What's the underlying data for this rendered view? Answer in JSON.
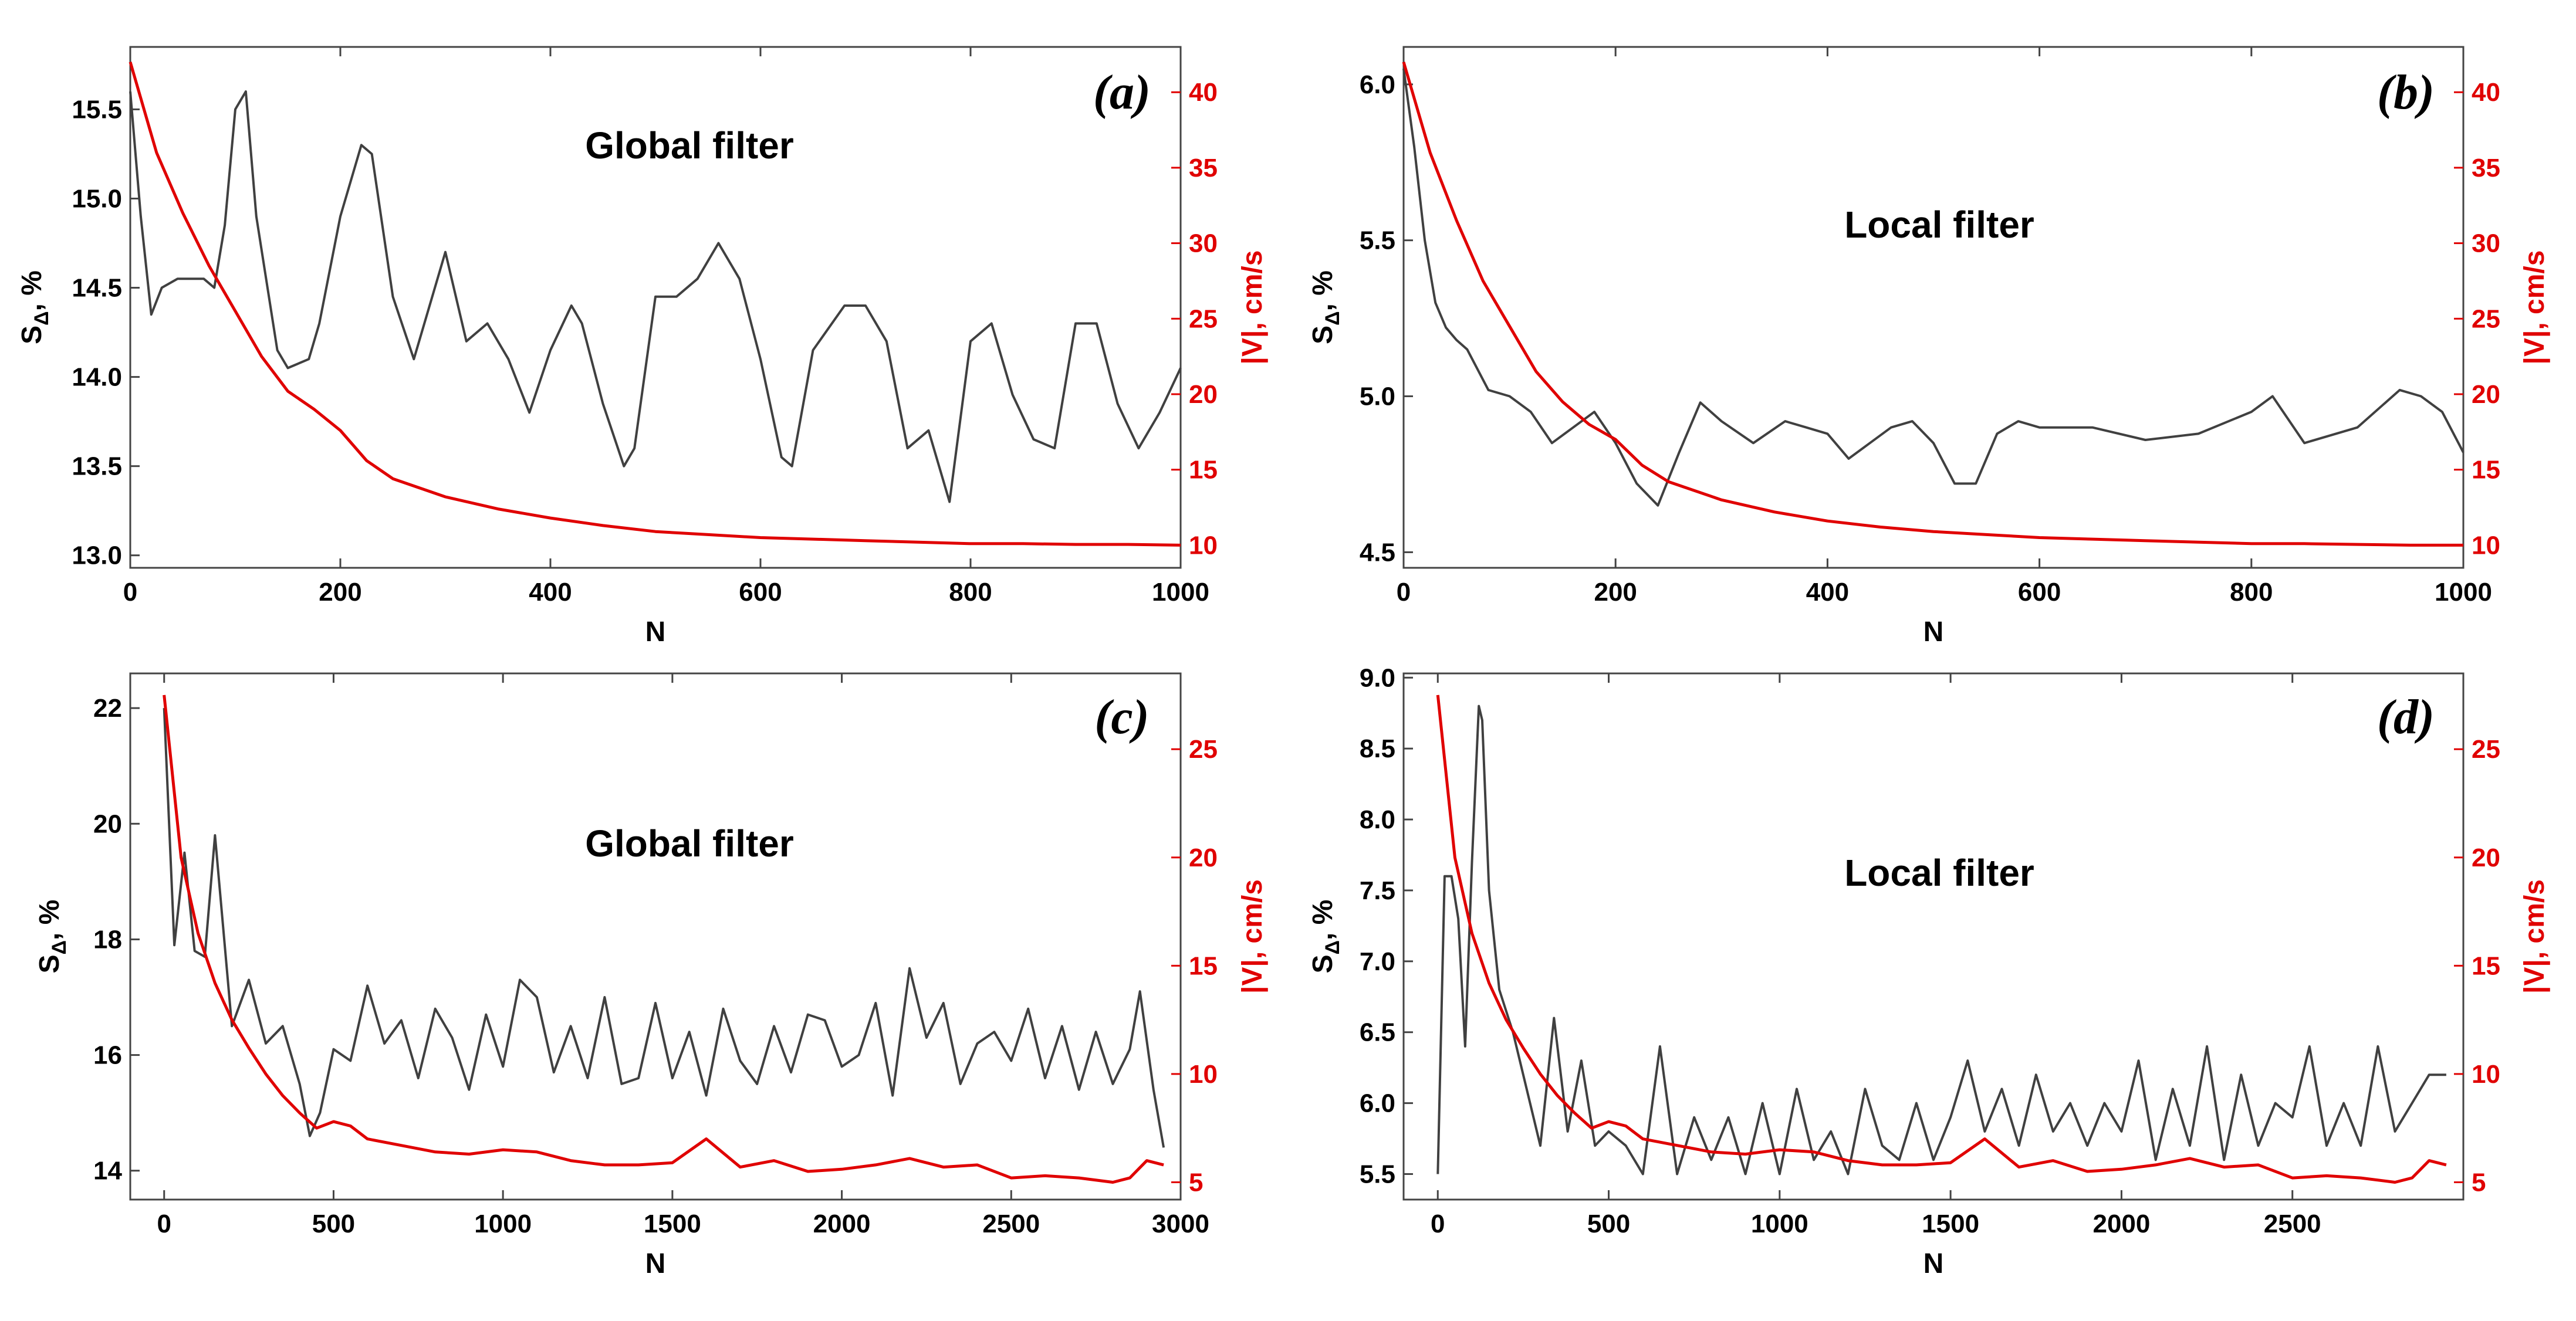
{
  "colors": {
    "s_line": "#404040",
    "v_line": "#e00000",
    "right_axis": "#e00000"
  },
  "chart_data": [
    {
      "type": "line",
      "panel": "(a)",
      "title": "Global filter",
      "xlabel": "N",
      "ylabel": "S_Δ, %",
      "ylabel_sub": "Δ",
      "ylabel_right": "|V|, cm/s",
      "xlim": [
        0,
        1000
      ],
      "ylim": [
        12.93,
        15.85
      ],
      "ylim_right": [
        8.5,
        43
      ],
      "xticks": [
        0,
        200,
        400,
        600,
        800,
        1000
      ],
      "xtick_labels": [
        "0",
        "200",
        "400",
        "600",
        "800",
        "1000"
      ],
      "yticks": [
        13.0,
        13.5,
        14.0,
        14.5,
        15.0,
        15.5
      ],
      "ytick_labels": [
        "13.0",
        "13.5",
        "14.0",
        "14.5",
        "15.0",
        "15.5"
      ],
      "yticks_right": [
        10,
        15,
        20,
        25,
        30,
        35,
        40
      ],
      "ytick_labels_right": [
        "10",
        "15",
        "20",
        "25",
        "30",
        "35",
        "40"
      ],
      "series": [
        {
          "name": "S_Δ",
          "axis": "left",
          "x": [
            0,
            10,
            20,
            30,
            45,
            60,
            70,
            80,
            90,
            100,
            110,
            120,
            140,
            150,
            170,
            180,
            200,
            220,
            230,
            250,
            270,
            300,
            320,
            340,
            360,
            380,
            400,
            420,
            430,
            450,
            470,
            480,
            500,
            520,
            540,
            560,
            580,
            600,
            620,
            630,
            650,
            680,
            700,
            720,
            740,
            760,
            780,
            800,
            820,
            840,
            860,
            880,
            900,
            920,
            940,
            960,
            980,
            1000
          ],
          "values": [
            15.6,
            14.9,
            14.35,
            14.5,
            14.55,
            14.55,
            14.55,
            14.5,
            14.85,
            15.5,
            15.6,
            14.9,
            14.15,
            14.05,
            14.1,
            14.3,
            14.9,
            15.3,
            15.25,
            14.45,
            14.1,
            14.7,
            14.2,
            14.3,
            14.1,
            13.8,
            14.15,
            14.4,
            14.3,
            13.85,
            13.5,
            13.6,
            14.45,
            14.45,
            14.55,
            14.75,
            14.55,
            14.1,
            13.55,
            13.5,
            14.15,
            14.4,
            14.4,
            14.2,
            13.6,
            13.7,
            13.3,
            14.2,
            14.3,
            13.9,
            13.65,
            13.6,
            14.3,
            14.3,
            13.85,
            13.6,
            13.8,
            14.05
          ]
        },
        {
          "name": "|V|",
          "axis": "right",
          "x": [
            0,
            25,
            50,
            75,
            100,
            125,
            150,
            175,
            200,
            225,
            250,
            300,
            350,
            400,
            450,
            500,
            550,
            600,
            650,
            700,
            750,
            800,
            850,
            900,
            950,
            1000
          ],
          "values": [
            42,
            36,
            32,
            28.5,
            25.5,
            22.5,
            20.2,
            19,
            17.6,
            15.6,
            14.4,
            13.2,
            12.4,
            11.8,
            11.3,
            10.9,
            10.7,
            10.5,
            10.4,
            10.3,
            10.2,
            10.1,
            10.1,
            10.05,
            10.05,
            10
          ]
        }
      ]
    },
    {
      "type": "line",
      "panel": "(b)",
      "title": "Local filter",
      "xlabel": "N",
      "ylabel": "S_Δ, %",
      "ylabel_sub": "Δ",
      "ylabel_right": "|V|, cm/s",
      "xlim": [
        0,
        1000
      ],
      "ylim": [
        4.45,
        6.12
      ],
      "ylim_right": [
        8.5,
        43
      ],
      "xticks": [
        0,
        200,
        400,
        600,
        800,
        1000
      ],
      "xtick_labels": [
        "0",
        "200",
        "400",
        "600",
        "800",
        "1000"
      ],
      "yticks": [
        4.5,
        5.0,
        5.5,
        6.0
      ],
      "ytick_labels": [
        "4.5",
        "5.0",
        "5.5",
        "6.0"
      ],
      "yticks_right": [
        10,
        15,
        20,
        25,
        30,
        35,
        40
      ],
      "ytick_labels_right": [
        "10",
        "15",
        "20",
        "25",
        "30",
        "35",
        "40"
      ],
      "series": [
        {
          "name": "S_Δ",
          "axis": "left",
          "x": [
            0,
            10,
            20,
            30,
            40,
            50,
            60,
            80,
            100,
            120,
            140,
            160,
            180,
            200,
            220,
            240,
            260,
            280,
            300,
            330,
            360,
            380,
            400,
            420,
            440,
            460,
            480,
            500,
            520,
            540,
            560,
            580,
            600,
            650,
            700,
            750,
            800,
            820,
            850,
            900,
            940,
            960,
            980,
            1000
          ],
          "values": [
            6.05,
            5.8,
            5.5,
            5.3,
            5.22,
            5.18,
            5.15,
            5.02,
            5.0,
            4.95,
            4.85,
            4.9,
            4.95,
            4.85,
            4.72,
            4.65,
            4.82,
            4.98,
            4.92,
            4.85,
            4.92,
            4.9,
            4.88,
            4.8,
            4.85,
            4.9,
            4.92,
            4.85,
            4.72,
            4.72,
            4.88,
            4.92,
            4.9,
            4.9,
            4.86,
            4.88,
            4.95,
            5.0,
            4.85,
            4.9,
            5.02,
            5.0,
            4.95,
            4.82
          ]
        },
        {
          "name": "|V|",
          "axis": "right",
          "x": [
            0,
            25,
            50,
            75,
            100,
            125,
            150,
            175,
            200,
            225,
            250,
            300,
            350,
            400,
            450,
            500,
            550,
            600,
            650,
            700,
            750,
            800,
            850,
            900,
            950,
            1000
          ],
          "values": [
            42,
            36,
            31.5,
            27.5,
            24.5,
            21.5,
            19.5,
            18,
            17,
            15.3,
            14.2,
            13,
            12.2,
            11.6,
            11.2,
            10.9,
            10.7,
            10.5,
            10.4,
            10.3,
            10.2,
            10.1,
            10.1,
            10.05,
            10,
            10
          ]
        }
      ]
    },
    {
      "type": "line",
      "panel": "(c)",
      "title": "Global filter",
      "xlabel": "N",
      "ylabel": "S_Δ, %",
      "ylabel_sub": "Δ",
      "ylabel_right": "|V|, cm/s",
      "xlim": [
        -100,
        3000
      ],
      "ylim": [
        13.5,
        22.6
      ],
      "ylim_right": [
        4.2,
        28.5
      ],
      "xticks": [
        0,
        500,
        1000,
        1500,
        2000,
        2500,
        3000
      ],
      "xtick_labels": [
        "0",
        "500",
        "1000",
        "1500",
        "2000",
        "2500",
        "3000"
      ],
      "yticks": [
        14,
        16,
        18,
        20,
        22
      ],
      "ytick_labels": [
        "14",
        "16",
        "18",
        "20",
        "22"
      ],
      "yticks_right": [
        5,
        10,
        15,
        20,
        25
      ],
      "ytick_labels_right": [
        "5",
        "10",
        "15",
        "20",
        "25"
      ],
      "series": [
        {
          "name": "S_Δ",
          "axis": "left",
          "x": [
            0,
            30,
            60,
            90,
            120,
            150,
            200,
            250,
            300,
            350,
            400,
            430,
            460,
            500,
            550,
            600,
            650,
            700,
            750,
            800,
            850,
            900,
            950,
            1000,
            1050,
            1100,
            1150,
            1200,
            1250,
            1300,
            1350,
            1400,
            1450,
            1500,
            1550,
            1600,
            1650,
            1700,
            1750,
            1800,
            1850,
            1900,
            1950,
            2000,
            2050,
            2100,
            2150,
            2200,
            2250,
            2300,
            2350,
            2400,
            2450,
            2500,
            2550,
            2600,
            2650,
            2700,
            2750,
            2800,
            2850,
            2880,
            2920,
            2950
          ],
          "values": [
            22.0,
            17.9,
            19.5,
            17.8,
            17.7,
            19.8,
            16.5,
            17.3,
            16.2,
            16.5,
            15.5,
            14.6,
            15.0,
            16.1,
            15.9,
            17.2,
            16.2,
            16.6,
            15.6,
            16.8,
            16.3,
            15.4,
            16.7,
            15.8,
            17.3,
            17.0,
            15.7,
            16.5,
            15.6,
            17.0,
            15.5,
            15.6,
            16.9,
            15.6,
            16.4,
            15.3,
            16.8,
            15.9,
            15.5,
            16.5,
            15.7,
            16.7,
            16.6,
            15.8,
            16.0,
            16.9,
            15.3,
            17.5,
            16.3,
            16.9,
            15.5,
            16.2,
            16.4,
            15.9,
            16.8,
            15.6,
            16.5,
            15.4,
            16.4,
            15.5,
            16.1,
            17.1,
            15.4,
            14.4
          ]
        },
        {
          "name": "|V|",
          "axis": "right",
          "x": [
            0,
            50,
            100,
            150,
            200,
            250,
            300,
            350,
            400,
            450,
            500,
            550,
            600,
            700,
            800,
            900,
            1000,
            1100,
            1200,
            1300,
            1400,
            1500,
            1600,
            1700,
            1800,
            1900,
            2000,
            2100,
            2200,
            2300,
            2400,
            2500,
            2600,
            2700,
            2800,
            2850,
            2900,
            2950
          ],
          "values": [
            27.5,
            20,
            16.5,
            14.2,
            12.5,
            11.2,
            10,
            9,
            8.2,
            7.5,
            7.8,
            7.6,
            7.0,
            6.7,
            6.4,
            6.3,
            6.5,
            6.4,
            6.0,
            5.8,
            5.8,
            5.9,
            7.0,
            5.7,
            6.0,
            5.5,
            5.6,
            5.8,
            6.1,
            5.7,
            5.8,
            5.2,
            5.3,
            5.2,
            5.0,
            5.2,
            6.0,
            5.8
          ]
        }
      ]
    },
    {
      "type": "line",
      "panel": "(d)",
      "title": "Local filter",
      "xlabel": "N",
      "ylabel": "S_Δ, %",
      "ylabel_sub": "Δ",
      "ylabel_right": "|V|, cm/s",
      "xlim": [
        -100,
        3000
      ],
      "ylim": [
        5.32,
        9.03
      ],
      "ylim_right": [
        4.2,
        28.5
      ],
      "xticks": [
        0,
        500,
        1000,
        1500,
        2000,
        2500
      ],
      "xtick_labels": [
        "0",
        "500",
        "1000",
        "1500",
        "2000",
        "2500"
      ],
      "yticks": [
        5.5,
        6.0,
        6.5,
        7.0,
        7.5,
        8.0,
        8.5,
        9.0
      ],
      "ytick_labels": [
        "5.5",
        "6.0",
        "6.5",
        "7.0",
        "7.5",
        "8.0",
        "8.5",
        "9.0"
      ],
      "yticks_right": [
        5,
        10,
        15,
        20,
        25
      ],
      "ytick_labels_right": [
        "5",
        "10",
        "15",
        "20",
        "25"
      ],
      "series": [
        {
          "name": "S_Δ",
          "axis": "left",
          "x": [
            0,
            20,
            40,
            60,
            80,
            100,
            120,
            130,
            150,
            180,
            220,
            260,
            300,
            340,
            380,
            420,
            460,
            500,
            550,
            600,
            650,
            700,
            750,
            800,
            850,
            900,
            950,
            1000,
            1050,
            1100,
            1150,
            1200,
            1250,
            1300,
            1350,
            1400,
            1450,
            1500,
            1550,
            1600,
            1650,
            1700,
            1750,
            1800,
            1850,
            1900,
            1950,
            2000,
            2050,
            2100,
            2150,
            2200,
            2250,
            2300,
            2350,
            2400,
            2450,
            2500,
            2550,
            2600,
            2650,
            2700,
            2750,
            2800,
            2850,
            2900,
            2950
          ],
          "values": [
            5.5,
            7.6,
            7.6,
            7.3,
            6.4,
            7.7,
            8.8,
            8.7,
            7.5,
            6.8,
            6.5,
            6.1,
            5.7,
            6.6,
            5.8,
            6.3,
            5.7,
            5.8,
            5.7,
            5.5,
            6.4,
            5.5,
            5.9,
            5.6,
            5.9,
            5.5,
            6.0,
            5.5,
            6.1,
            5.6,
            5.8,
            5.5,
            6.1,
            5.7,
            5.6,
            6.0,
            5.6,
            5.9,
            6.3,
            5.8,
            6.1,
            5.7,
            6.2,
            5.8,
            6.0,
            5.7,
            6.0,
            5.8,
            6.3,
            5.6,
            6.1,
            5.7,
            6.4,
            5.6,
            6.2,
            5.7,
            6.0,
            5.9,
            6.4,
            5.7,
            6.0,
            5.7,
            6.4,
            5.8,
            6.0,
            6.2,
            6.2
          ]
        },
        {
          "name": "|V|",
          "axis": "right",
          "x": [
            0,
            50,
            100,
            150,
            200,
            250,
            300,
            350,
            400,
            450,
            500,
            550,
            600,
            700,
            800,
            900,
            1000,
            1100,
            1200,
            1300,
            1400,
            1500,
            1600,
            1700,
            1800,
            1900,
            2000,
            2100,
            2200,
            2300,
            2400,
            2500,
            2600,
            2700,
            2800,
            2850,
            2900,
            2950
          ],
          "values": [
            27.5,
            20,
            16.5,
            14.2,
            12.5,
            11.2,
            10,
            9,
            8.2,
            7.5,
            7.8,
            7.6,
            7.0,
            6.7,
            6.4,
            6.3,
            6.5,
            6.4,
            6.0,
            5.8,
            5.8,
            5.9,
            7.0,
            5.7,
            6.0,
            5.5,
            5.6,
            5.8,
            6.1,
            5.7,
            5.8,
            5.2,
            5.3,
            5.2,
            5.0,
            5.2,
            6.0,
            5.8
          ]
        }
      ]
    }
  ]
}
